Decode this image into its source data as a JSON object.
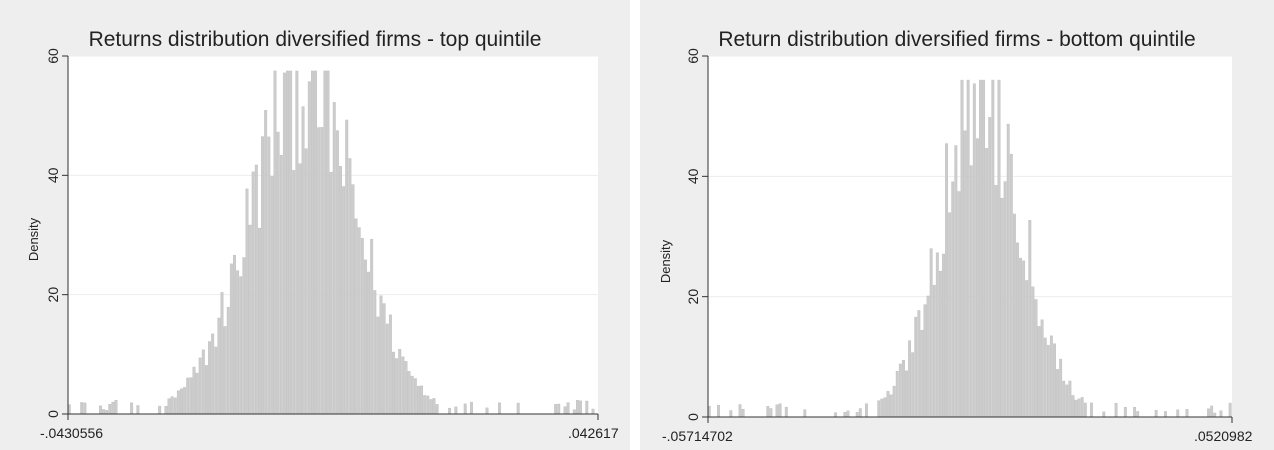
{
  "chart_data": [
    {
      "type": "bar",
      "title": "Returns distribution diversified firms - top quintile",
      "ylabel": "Density",
      "xlabel": "",
      "xlim": [
        -0.0430556,
        0.042617
      ],
      "ylim": [
        0,
        60
      ],
      "yticks": [
        0,
        20,
        40,
        60
      ],
      "ytick_labels": [
        "0",
        "20",
        "40",
        "60"
      ],
      "xtick_labels": [
        "-.0430556",
        ".042617"
      ],
      "grid": true,
      "bar_color": "#cccccc",
      "center": -0.005,
      "peak": 57.5,
      "approx_std": 0.0085
    },
    {
      "type": "bar",
      "title": "Return distribution diversified firms - bottom quintile",
      "ylabel": "Density",
      "xlabel": "",
      "xlim": [
        -0.05714702,
        0.0520982
      ],
      "ylim": [
        0,
        60
      ],
      "yticks": [
        0,
        20,
        40,
        60
      ],
      "ytick_labels": [
        "0",
        "20",
        "40",
        "60"
      ],
      "xtick_labels": [
        "-.05714702",
        ".0520982"
      ],
      "grid": true,
      "bar_color": "#cccccc",
      "center": 0.0,
      "peak": 56,
      "approx_std": 0.0085
    }
  ]
}
